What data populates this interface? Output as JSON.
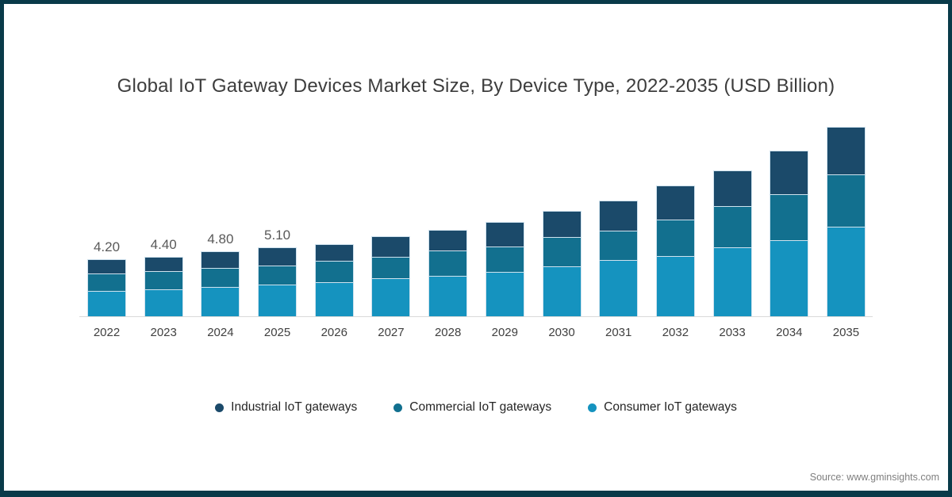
{
  "title": "Global IoT Gateway Devices Market Size, By Device Type, 2022-2035 (USD Billion)",
  "source": {
    "text": "Source: www.gminsights.com"
  },
  "colors": {
    "frame": "#093a49",
    "axis_line": "#d9d9d9",
    "title_text": "#3d3d3d",
    "data_label_text": "#595959",
    "industrial": "#1b4a6a",
    "commercial": "#12708f",
    "consumer": "#1593bf",
    "segment_divider": "#cfe2ee"
  },
  "chart_data": {
    "type": "bar",
    "stacked": true,
    "title": "Global IoT Gateway Devices Market Size, By Device Type, 2022-2035 (USD Billion)",
    "xlabel": "",
    "ylabel": "USD Billion",
    "ylim": [
      0,
      15
    ],
    "grid": false,
    "legend_position": "bottom",
    "categories": [
      "2022",
      "2023",
      "2024",
      "2025",
      "2026",
      "2027",
      "2028",
      "2029",
      "2030",
      "2031",
      "2032",
      "2033",
      "2034",
      "2035"
    ],
    "series": [
      {
        "name": "Industrial IoT gateways",
        "color": "#1b4a6a",
        "values": [
          1.0,
          1.0,
          1.2,
          1.3,
          1.2,
          1.5,
          1.5,
          1.8,
          1.9,
          2.2,
          2.5,
          2.6,
          3.2,
          3.5
        ]
      },
      {
        "name": "Commercial IoT gateways",
        "color": "#12708f",
        "values": [
          1.3,
          1.4,
          1.4,
          1.4,
          1.6,
          1.6,
          1.9,
          1.9,
          2.2,
          2.2,
          2.7,
          3.1,
          3.4,
          3.9
        ]
      },
      {
        "name": "Consumer IoT gateways",
        "color": "#1593bf",
        "values": [
          1.9,
          2.0,
          2.2,
          2.4,
          2.5,
          2.8,
          3.0,
          3.3,
          3.7,
          4.2,
          4.5,
          5.1,
          5.7,
          6.7
        ]
      }
    ],
    "stack_order_bottom_to_top": [
      "Consumer IoT gateways",
      "Commercial IoT gateways",
      "Industrial IoT gateways"
    ],
    "totals": [
      4.2,
      4.4,
      4.8,
      5.1,
      5.3,
      5.9,
      6.4,
      7.0,
      7.8,
      8.6,
      9.7,
      10.8,
      12.3,
      14.1
    ],
    "bar_total_labels": [
      "4.20",
      "4.40",
      "4.80",
      "5.10",
      null,
      null,
      null,
      null,
      null,
      null,
      null,
      null,
      null,
      null
    ]
  }
}
